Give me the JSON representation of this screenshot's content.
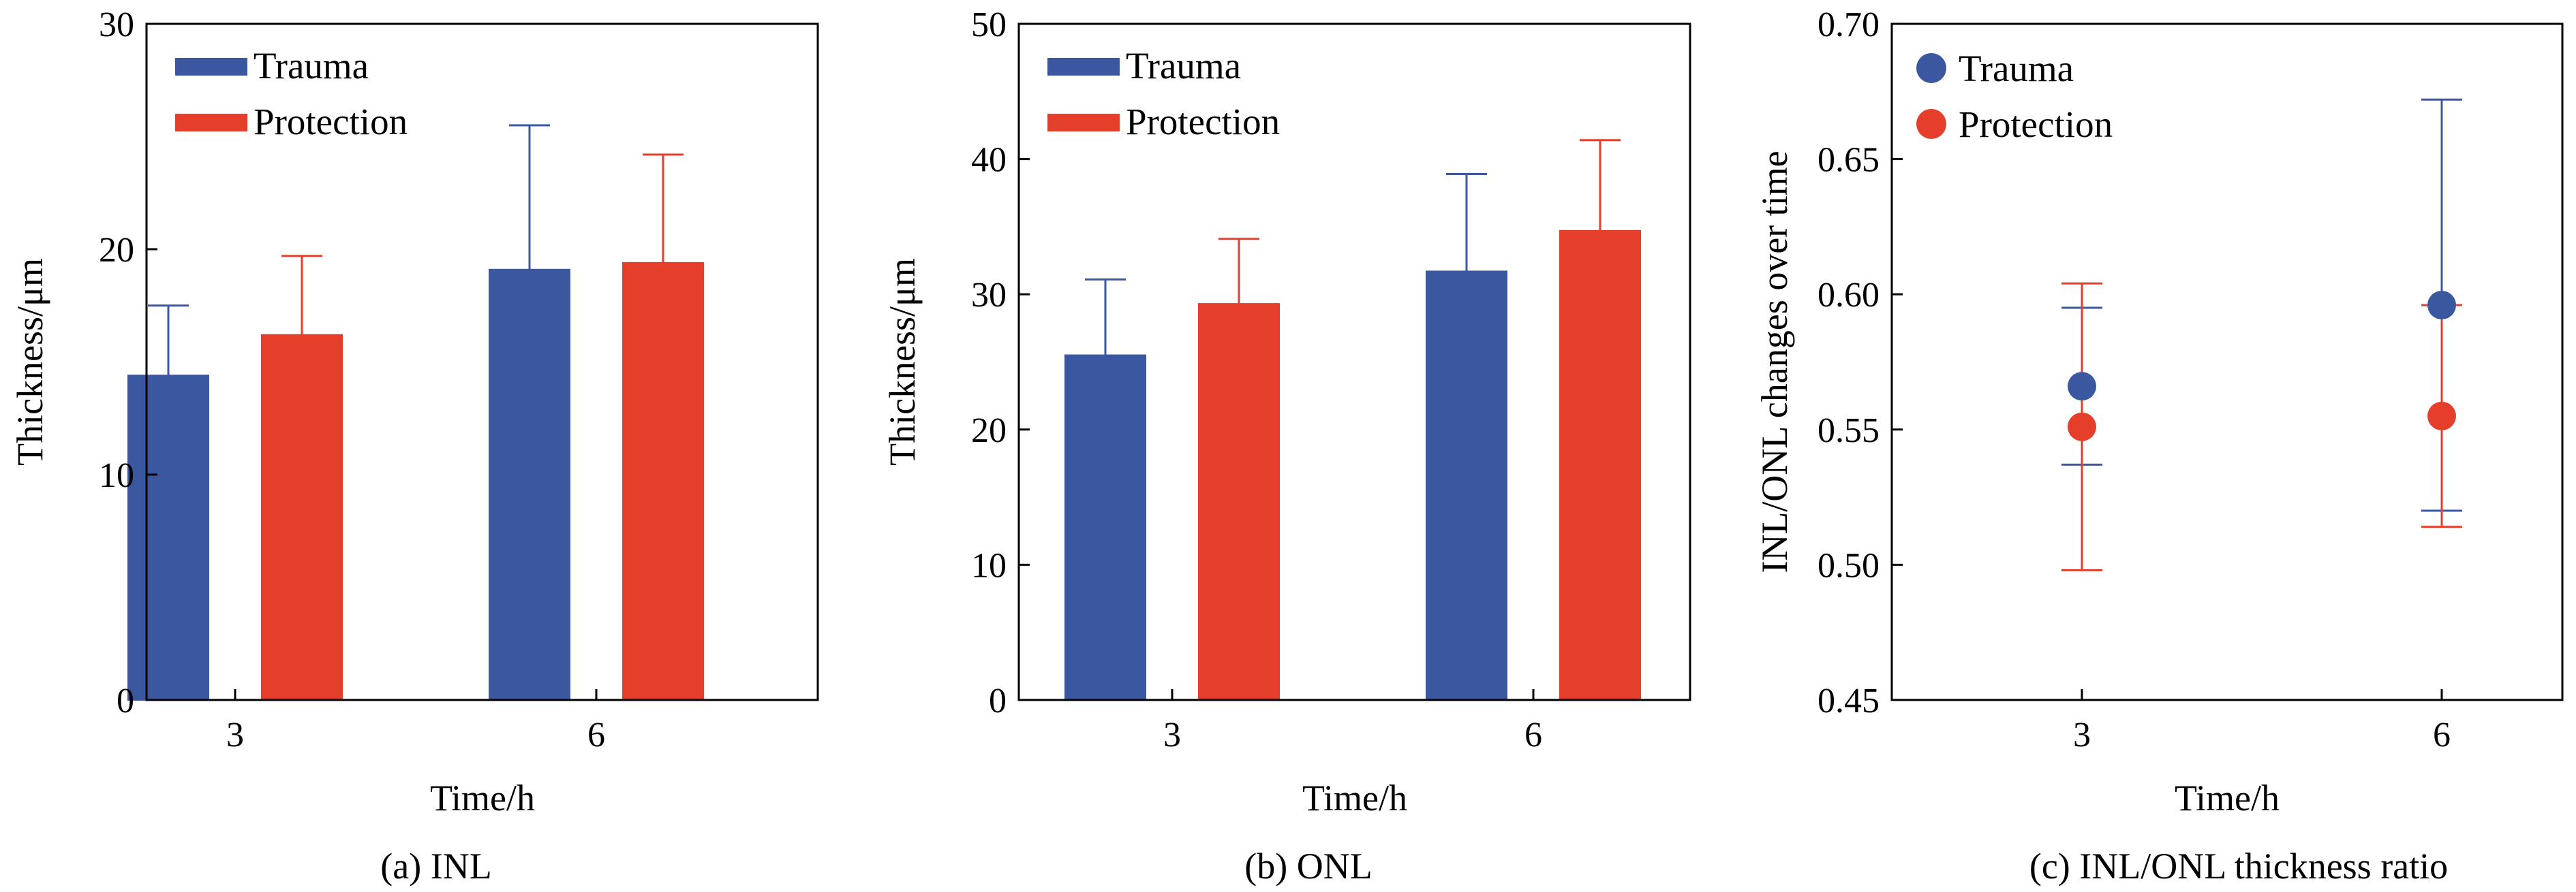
{
  "chart_data": [
    {
      "type": "bar",
      "caption": "(a) INL",
      "categories": [
        "3",
        "6"
      ],
      "xlabel": "Time/h",
      "ylabel": "Thickness/μm",
      "ylim": [
        0,
        30
      ],
      "yticks": [
        0,
        10,
        20,
        30
      ],
      "legend_position": "top-left",
      "grid": false,
      "series": [
        {
          "name": "Trauma",
          "color": "#3a57a0",
          "values": [
            14.4,
            19.1
          ],
          "error": [
            3.1,
            6.4
          ]
        },
        {
          "name": "Protection",
          "color": "#e53f2b",
          "values": [
            16.2,
            19.4
          ],
          "error": [
            3.5,
            4.8
          ]
        }
      ]
    },
    {
      "type": "bar",
      "caption": "(b) ONL",
      "categories": [
        "3",
        "6"
      ],
      "xlabel": "Time/h",
      "ylabel": "Thickness/μm",
      "ylim": [
        0,
        50
      ],
      "yticks": [
        0,
        10,
        20,
        30,
        40,
        50
      ],
      "legend_position": "top-left",
      "grid": false,
      "series": [
        {
          "name": "Trauma",
          "color": "#3a57a0",
          "values": [
            25.5,
            31.7
          ],
          "error": [
            5.6,
            7.2
          ]
        },
        {
          "name": "Protection",
          "color": "#e53f2b",
          "values": [
            29.3,
            34.7
          ],
          "error": [
            4.8,
            6.7
          ]
        }
      ]
    },
    {
      "type": "scatter",
      "caption": "(c) INL/ONL thickness ratio",
      "categories": [
        "3",
        "6"
      ],
      "xlabel": "Time/h",
      "ylabel": "INL/ONL changes over time",
      "ylim": [
        0.45,
        0.7
      ],
      "yticks": [
        "0.45",
        "0.50",
        "0.55",
        "0.60",
        "0.65",
        "0.70"
      ],
      "legend_position": "top-left",
      "grid": false,
      "series": [
        {
          "name": "Trauma",
          "color": "#3a57a0",
          "values": [
            0.566,
            0.596
          ],
          "error": [
            0.029,
            0.076
          ]
        },
        {
          "name": "Protection",
          "color": "#e53f2b",
          "values": [
            0.551,
            0.555
          ],
          "error": [
            0.053,
            0.041
          ]
        }
      ]
    }
  ]
}
